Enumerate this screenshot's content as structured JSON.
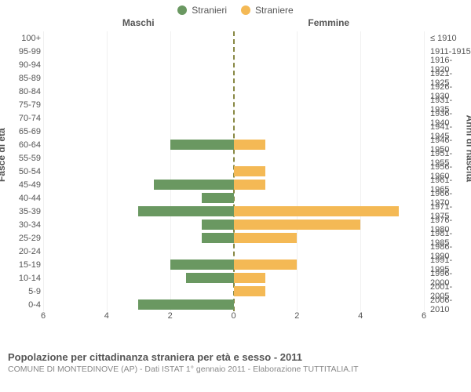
{
  "legend": {
    "male": {
      "label": "Stranieri",
      "color": "#6a9861"
    },
    "female": {
      "label": "Straniere",
      "color": "#f4b955"
    }
  },
  "columns": {
    "left": "Maschi",
    "right": "Femmine"
  },
  "axes": {
    "left_title": "Fasce di età",
    "right_title": "Anni di nascita",
    "x_max": 6,
    "x_ticks_left": [
      6,
      4,
      2,
      0
    ],
    "x_ticks_right": [
      0,
      2,
      4,
      6
    ]
  },
  "chart": {
    "type": "population-pyramid",
    "background": "#ffffff",
    "rows": [
      {
        "age": "100+",
        "birth": "≤ 1910",
        "m": 0,
        "f": 0
      },
      {
        "age": "95-99",
        "birth": "1911-1915",
        "m": 0,
        "f": 0
      },
      {
        "age": "90-94",
        "birth": "1916-1920",
        "m": 0,
        "f": 0
      },
      {
        "age": "85-89",
        "birth": "1921-1925",
        "m": 0,
        "f": 0
      },
      {
        "age": "80-84",
        "birth": "1926-1930",
        "m": 0,
        "f": 0
      },
      {
        "age": "75-79",
        "birth": "1931-1935",
        "m": 0,
        "f": 0
      },
      {
        "age": "70-74",
        "birth": "1936-1940",
        "m": 0,
        "f": 0
      },
      {
        "age": "65-69",
        "birth": "1941-1945",
        "m": 0,
        "f": 0
      },
      {
        "age": "60-64",
        "birth": "1946-1950",
        "m": 2,
        "f": 1
      },
      {
        "age": "55-59",
        "birth": "1951-1955",
        "m": 0,
        "f": 0
      },
      {
        "age": "50-54",
        "birth": "1956-1960",
        "m": 0,
        "f": 1
      },
      {
        "age": "45-49",
        "birth": "1961-1965",
        "m": 2.5,
        "f": 1
      },
      {
        "age": "40-44",
        "birth": "1966-1970",
        "m": 1,
        "f": 0
      },
      {
        "age": "35-39",
        "birth": "1971-1975",
        "m": 3,
        "f": 5.2
      },
      {
        "age": "30-34",
        "birth": "1976-1980",
        "m": 1,
        "f": 4
      },
      {
        "age": "25-29",
        "birth": "1981-1985",
        "m": 1,
        "f": 2
      },
      {
        "age": "20-24",
        "birth": "1986-1990",
        "m": 0,
        "f": 0
      },
      {
        "age": "15-19",
        "birth": "1991-1995",
        "m": 2,
        "f": 2
      },
      {
        "age": "10-14",
        "birth": "1996-2000",
        "m": 1.5,
        "f": 1
      },
      {
        "age": "5-9",
        "birth": "2001-2005",
        "m": 0,
        "f": 1
      },
      {
        "age": "0-4",
        "birth": "2006-2010",
        "m": 3,
        "f": 0
      }
    ]
  },
  "footer": {
    "title": "Popolazione per cittadinanza straniera per età e sesso - 2011",
    "subtitle": "COMUNE DI MONTEDINOVE (AP) - Dati ISTAT 1° gennaio 2011 - Elaborazione TUTTITALIA.IT"
  }
}
